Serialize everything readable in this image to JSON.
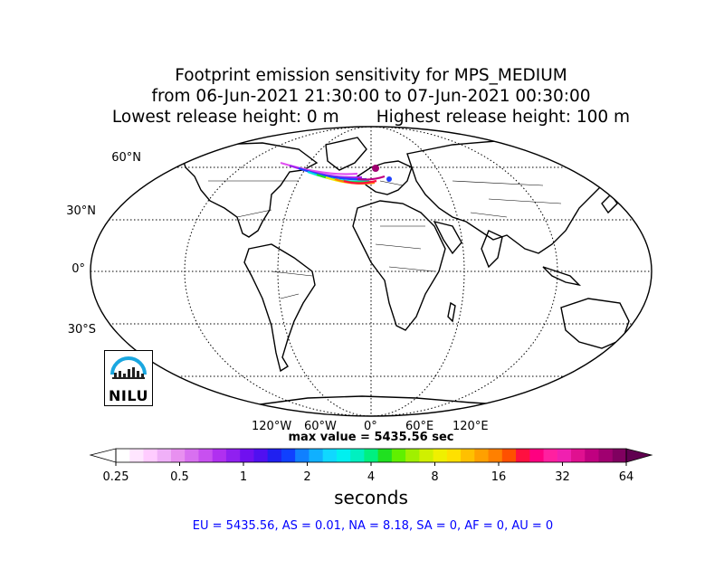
{
  "title": {
    "line1": "Footprint emission sensitivity for MPS_MEDIUM",
    "line2": "from 06-Jun-2021 21:30:00 to 07-Jun-2021 00:30:00",
    "line3": "Lowest release height: 0 m       Highest release height: 100 m"
  },
  "map": {
    "projection": "Robinson",
    "grid": true,
    "lat_labels": [
      "60°N",
      "30°N",
      "0°",
      "30°S"
    ],
    "lon_labels": [
      "120°W",
      "60°W",
      "0°",
      "60°E",
      "120°E"
    ],
    "plume_region": "North Atlantic to Europe"
  },
  "max_value_text": "max value = 5435.56 sec",
  "colorbar": {
    "ticks": [
      "0.25",
      "0.5",
      "1",
      "2",
      "4",
      "8",
      "16",
      "32",
      "64"
    ],
    "units": "seconds",
    "scale": "log",
    "colors": [
      "#ffffff",
      "#ffe6ff",
      "#ffccff",
      "#f0b0f8",
      "#e890f0",
      "#d870f0",
      "#c850f0",
      "#b030f0",
      "#9020f0",
      "#7010f0",
      "#5010f0",
      "#2020f0",
      "#1040ff",
      "#1080ff",
      "#10b0ff",
      "#10d8ff",
      "#00f0f0",
      "#00f0c0",
      "#00f080",
      "#20e020",
      "#60f000",
      "#a0f000",
      "#d0f000",
      "#f0f000",
      "#ffe000",
      "#ffc000",
      "#ffa000",
      "#ff8000",
      "#ff5000",
      "#ff1040",
      "#ff0080",
      "#ff20a0",
      "#f020b0",
      "#e01090",
      "#c00080",
      "#a00070",
      "#800060"
    ]
  },
  "summary": "EU = 5435.56,  AS = 0.01,  NA = 8.18,  SA = 0,  AF = 0,  AU = 0",
  "logo": {
    "text": "NILU"
  }
}
